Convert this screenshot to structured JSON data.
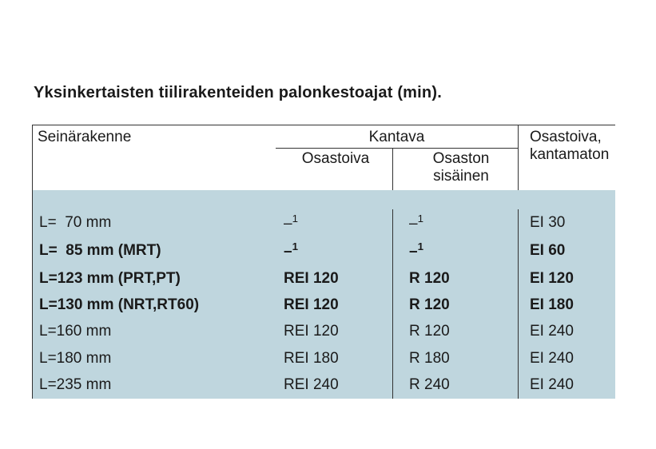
{
  "title": "Yksinkertaisten tiilirakenteiden palonkestoajat (min).",
  "headers": {
    "seinarakenne": "Seinärakenne",
    "kantava": "Kantava",
    "osastoiva_kantamaton_line1": "Osastoiva,",
    "osastoiva_kantamaton_line2": "kantamaton",
    "sub_osastoiva": "Osastoiva",
    "sub_sisainen_line1": "Osaston",
    "sub_sisainen_line2": "sisäinen"
  },
  "rows": [
    {
      "bold": false,
      "label": "L=  70 mm",
      "osastoiva": "–",
      "sup1": "1",
      "sisainen": "–",
      "sup2": "1",
      "kant": "EI 30"
    },
    {
      "bold": true,
      "label": "L=  85 mm (MRT)",
      "osastoiva": "–",
      "sup1": "1",
      "sisainen": "–",
      "sup2": "1",
      "kant": "EI 60"
    },
    {
      "bold": true,
      "label": "L=123 mm (PRT,PT)",
      "osastoiva": "REI 120",
      "sup1": "",
      "sisainen": "R 120",
      "sup2": "",
      "kant": "EI 120"
    },
    {
      "bold": true,
      "label": "L=130 mm (NRT,RT60)",
      "osastoiva": "REI 120",
      "sup1": "",
      "sisainen": "R 120",
      "sup2": "",
      "kant": "EI 180"
    },
    {
      "bold": false,
      "label": "L=160 mm",
      "osastoiva": "REI 120",
      "sup1": "",
      "sisainen": "R 120",
      "sup2": "",
      "kant": "EI 240"
    },
    {
      "bold": false,
      "label": "L=180 mm",
      "osastoiva": "REI 180",
      "sup1": "",
      "sisainen": "R 180",
      "sup2": "",
      "kant": "EI 240"
    },
    {
      "bold": false,
      "label": "L=235 mm",
      "osastoiva": "REI 240",
      "sup1": "",
      "sisainen": "R 240",
      "sup2": "",
      "kant": "EI 240"
    }
  ],
  "colors": {
    "row_bg": "#bfd6de",
    "border": "#333333",
    "text": "#1a1a1a",
    "page_bg": "#ffffff"
  }
}
